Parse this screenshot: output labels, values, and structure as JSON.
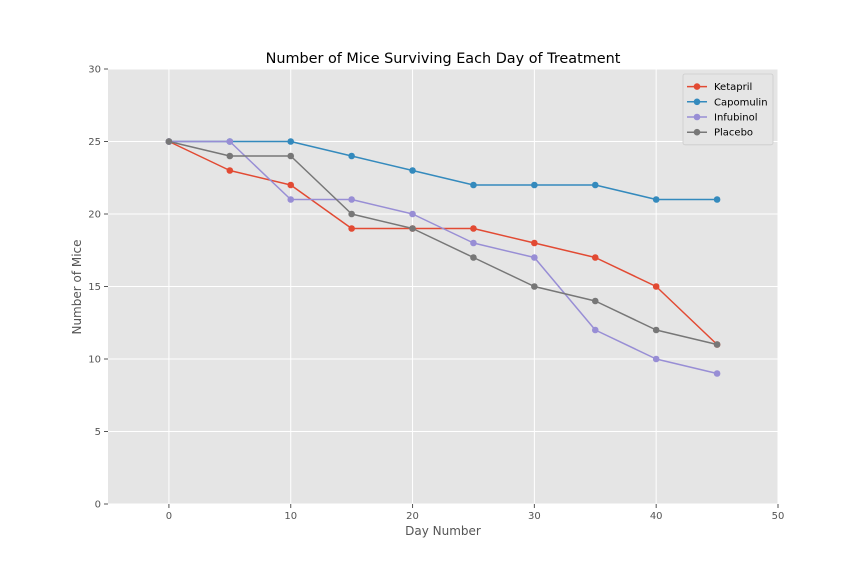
{
  "chart_data": {
    "type": "line",
    "title": "Number of Mice Surviving Each Day of Treatment",
    "xlabel": "Day Number",
    "ylabel": "Number of Mice",
    "xlim": [
      -5,
      50
    ],
    "ylim": [
      0,
      30
    ],
    "xticks": [
      0,
      10,
      20,
      30,
      40,
      50
    ],
    "yticks": [
      0,
      5,
      10,
      15,
      20,
      25,
      30
    ],
    "grid": true,
    "legend_position": "top-right",
    "x": [
      0,
      5,
      10,
      15,
      20,
      25,
      30,
      35,
      40,
      45
    ],
    "series": [
      {
        "name": "Ketapril",
        "color": "#E24A33",
        "values": [
          25,
          23,
          22,
          19,
          19,
          19,
          18,
          17,
          15,
          11
        ]
      },
      {
        "name": "Capomulin",
        "color": "#348ABD",
        "values": [
          25,
          25,
          25,
          24,
          23,
          22,
          22,
          22,
          21,
          21
        ]
      },
      {
        "name": "Infubinol",
        "color": "#988ED5",
        "values": [
          25,
          25,
          21,
          21,
          20,
          18,
          17,
          12,
          10,
          9
        ]
      },
      {
        "name": "Placebo",
        "color": "#777777",
        "values": [
          25,
          24,
          24,
          20,
          19,
          17,
          15,
          14,
          12,
          11
        ]
      }
    ],
    "plot_background": "#E5E5E5",
    "grid_color": "#FFFFFF"
  }
}
